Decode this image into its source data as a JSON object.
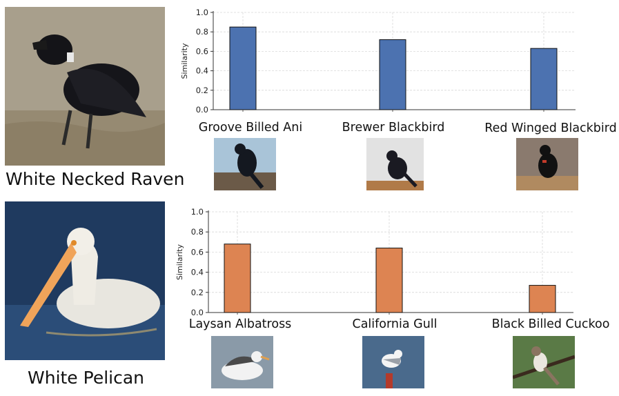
{
  "rows": [
    {
      "query_label": "White Necked Raven",
      "chart_data": {
        "type": "bar",
        "categories": [
          "Groove Billed Ani",
          "Brewer Blackbird",
          "Red Winged Blackbird"
        ],
        "values": [
          0.85,
          0.72,
          0.63
        ],
        "ylabel": "Similarity",
        "ylim": [
          0,
          1.0
        ],
        "yticks": [
          0.0,
          0.2,
          0.4,
          0.6,
          0.8,
          1.0
        ],
        "grid": true,
        "bar_color": "#4c72b0"
      }
    },
    {
      "query_label": "White Pelican",
      "chart_data": {
        "type": "bar",
        "categories": [
          "Laysan Albatross",
          "California Gull",
          "Black Billed Cuckoo"
        ],
        "values": [
          0.68,
          0.64,
          0.27
        ],
        "ylabel": "Similarity",
        "ylim": [
          0,
          1.0
        ],
        "yticks": [
          0.0,
          0.2,
          0.4,
          0.6,
          0.8,
          1.0
        ],
        "grid": true,
        "bar_color": "#dd8452"
      }
    }
  ]
}
